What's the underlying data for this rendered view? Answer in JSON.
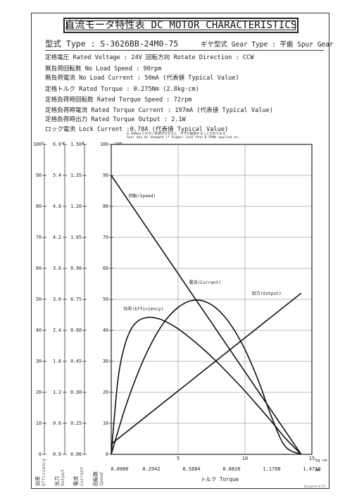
{
  "header": {
    "title": "直流モータ特性表 DC MOTOR CHARACTERISTICS",
    "model_label": "型式 Type : S-3626BB-24M0-75",
    "gear_label": "ギヤ型式 Gear Type : 平歯  Spur Gear"
  },
  "specs": {
    "rated_voltage": "定格電圧 Rated Voltage : 24V  回転方向 Rotate Direction : CCW",
    "no_load_speed": "無負荷回転数 No Load Speed : 90rpm",
    "no_load_current": "無負荷電流 No Load Current : 50mA (代表値 Typical Value)",
    "rated_torque": "定格トルク Rated Torque : 0.275Nm (2.8kg·cm)",
    "rated_torque_speed": "定格負荷時回転数 Rated Torque Speed : 72rpm",
    "rated_torque_current": "定格負荷時電流 Rated Torque Current : 197mA (代表値 Typical Value)",
    "rated_torque_output": "定格負荷時出力 Rated Torque Output : 2.1W",
    "lock_current": "ロック電流 Lock Current :0.78A (代表値 Typical Value)",
    "warning_jp": "0.49Nmより大きい負荷がかかると、ギヤが破損することがあります。",
    "warning_en": "Gear may be damaged if bigger load than 0.49Nm applied on."
  },
  "footer": {
    "designed": "Designed at 50"
  },
  "chart_data": {
    "type": "line",
    "title": "",
    "xlabel": "トルク Torque",
    "x_unit_nm": "Nm",
    "x_unit_kgcm": "kg·cm",
    "xlim": [
      0,
      15
    ],
    "x_ticks_kgcm": [
      "5",
      "10",
      "15"
    ],
    "x_ticks_nm": [
      "0.0000",
      "0.2942",
      "0.5884",
      "0.8826",
      "1.1768",
      "1.4710"
    ],
    "left_axes": [
      {
        "key": "efficiency",
        "unit": "%",
        "label_jp": "効率",
        "label_en": "Efficiency",
        "ticks": [
          "0",
          "10",
          "20",
          "30",
          "40",
          "50",
          "60",
          "70",
          "80",
          "90",
          "100"
        ]
      },
      {
        "key": "output",
        "unit": "W",
        "label_jp": "出力",
        "label_en": "Output",
        "ticks": [
          "0.0",
          "0.6",
          "1.2",
          "1.8",
          "2.4",
          "3.0",
          "3.6",
          "4.2",
          "4.8",
          "5.4",
          "6.0"
        ]
      },
      {
        "key": "current",
        "unit": "A",
        "label_jp": "電流",
        "label_en": "Current",
        "ticks": [
          "0.00",
          "0.15",
          "0.30",
          "0.45",
          "0.60",
          "0.75",
          "0.90",
          "1.05",
          "1.20",
          "1.35",
          "1.50"
        ]
      },
      {
        "key": "speed",
        "unit": "rpm",
        "label_jp": "回転数",
        "label_en": "Speed",
        "ticks": [
          "0",
          "10",
          "20",
          "30",
          "40",
          "50",
          "60",
          "70",
          "80",
          "90",
          "100"
        ]
      }
    ],
    "ylim": [
      0,
      100
    ],
    "grid": true,
    "series": [
      {
        "name": "回転(Speed)",
        "x": [
          0,
          14.2
        ],
        "y": [
          90,
          0
        ]
      },
      {
        "name": "電流(Current)",
        "x": [
          0,
          14.2
        ],
        "y": [
          3.3,
          52
        ]
      },
      {
        "name": "出力(Output)",
        "x": [
          0,
          1,
          2,
          3,
          4,
          5,
          6,
          7,
          8,
          9,
          10,
          11,
          12,
          13,
          14.2
        ],
        "y": [
          0,
          14.4,
          26.3,
          35.8,
          42.9,
          47.4,
          49.6,
          49.3,
          46.6,
          41.4,
          33.8,
          23.8,
          11.9,
          2.6,
          0
        ]
      },
      {
        "name": "効率(Efficiency)",
        "x": [
          0,
          0.5,
          1,
          1.5,
          2,
          2.5,
          3,
          3.5,
          4,
          5,
          6,
          7,
          8,
          9,
          10,
          11,
          12,
          13,
          14.2
        ],
        "y": [
          0,
          24,
          35,
          40.5,
          43,
          44,
          44.2,
          43.8,
          43,
          40.5,
          37.2,
          33.5,
          29.4,
          25,
          20.4,
          15.5,
          10.5,
          5.3,
          0
        ]
      }
    ],
    "annotations": [
      "回転(Speed)",
      "出力(Output)",
      "電流(Current)",
      "効率(Efficiency)"
    ]
  }
}
